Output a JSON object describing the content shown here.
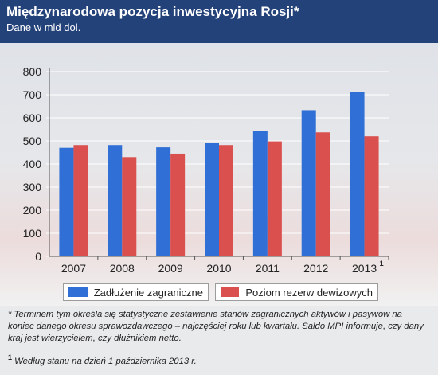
{
  "header": {
    "title": "Międzynarodowa pozycja inwestycyjna Rosji*",
    "subtitle": "Dane w mld dol."
  },
  "colors": {
    "header_bg": "#24427a",
    "series1": "#2f6fd6",
    "series2": "#d9504f"
  },
  "chart_data": {
    "type": "bar",
    "categories": [
      "2007",
      "2008",
      "2009",
      "2010",
      "2011",
      "2012",
      "2013"
    ],
    "category_superscripts": [
      "",
      "",
      "",
      "",
      "",
      "",
      "1"
    ],
    "series": [
      {
        "name": "Zadłużenie zagraniczne",
        "values": [
          470,
          482,
          472,
          492,
          542,
          633,
          712
        ]
      },
      {
        "name": "Poziom rezerw dewizowych",
        "values": [
          482,
          430,
          445,
          482,
          498,
          537,
          520
        ]
      }
    ],
    "yticks": [
      0,
      100,
      200,
      300,
      400,
      500,
      600,
      700,
      800
    ],
    "ylim": [
      0,
      800
    ],
    "grid": true,
    "legend_position": "bottom"
  },
  "legend": {
    "s1": "Zadłużenie zagraniczne",
    "s2": "Poziom rezerw dewizowych"
  },
  "footnotes": {
    "asterisk": "* Terminem tym określa się statystyczne zestawienie stanów zagranicznych aktywów i pasywów na koniec danego okresu sprawozdawczego – najczęściej roku lub kwartału. Saldo MPI informuje, czy dany kraj jest wierzycielem, czy dłużnikiem netto.",
    "one_marker": "1",
    "one": "Według stanu na dzień 1 października 2013 r."
  }
}
